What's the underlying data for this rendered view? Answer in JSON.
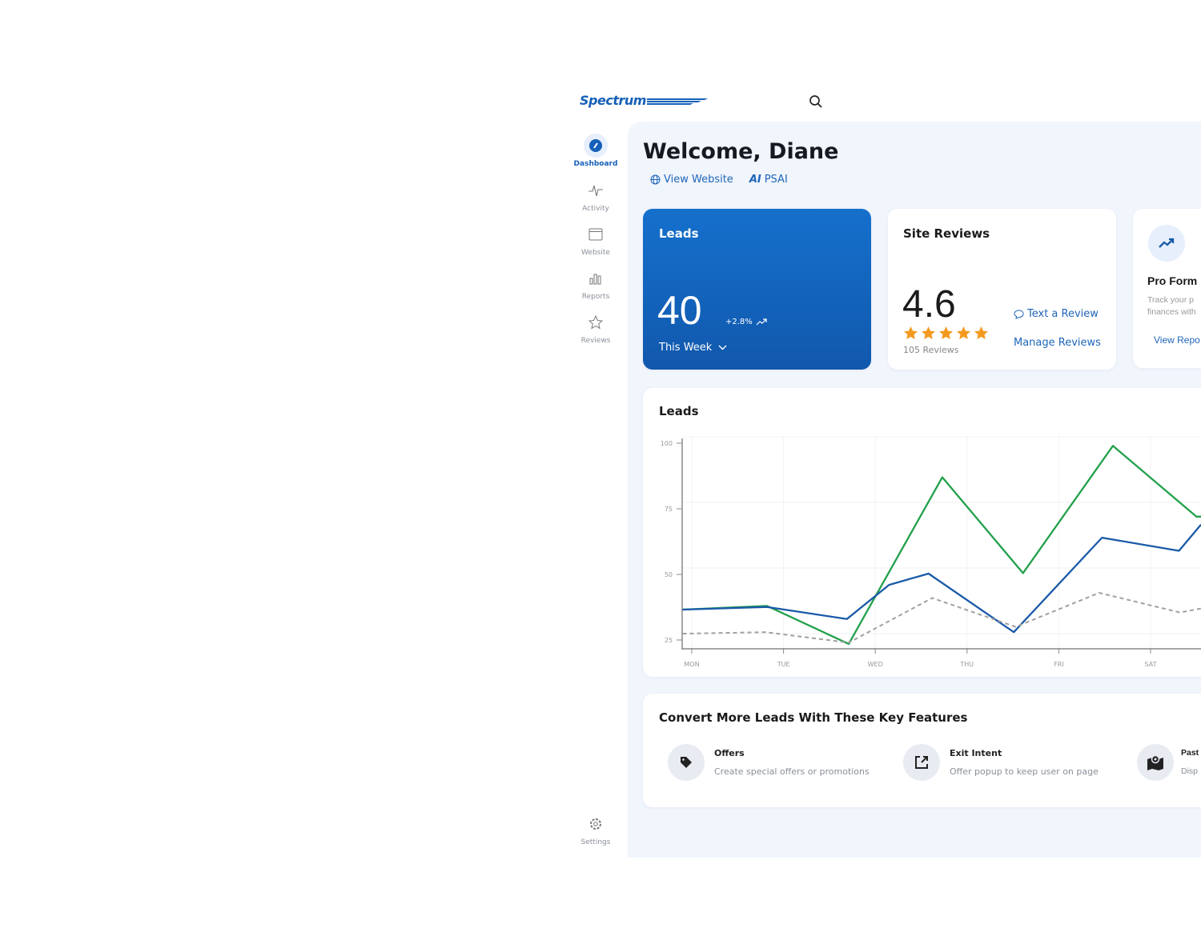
{
  "brand": {
    "logo": "Spectrum",
    "accent": "#1560b8"
  },
  "header": {
    "search_icon": "search-icon"
  },
  "sidebar": {
    "items": [
      {
        "label": "Dashboard",
        "icon": "gauge-icon",
        "active": true
      },
      {
        "label": "Activity",
        "icon": "pulse-icon"
      },
      {
        "label": "Website",
        "icon": "browser-window-icon"
      },
      {
        "label": "Reports",
        "icon": "bar-chart-icon"
      },
      {
        "label": "Reviews",
        "icon": "star-icon"
      }
    ],
    "settings": "Settings"
  },
  "welcome": {
    "title": "Welcome, Diane",
    "view_website": "View Website",
    "ai_badge": "AI",
    "psai": "PSAI"
  },
  "leads_card": {
    "title": "Leads",
    "value": "40",
    "change": "+2.8%",
    "period": "This Week"
  },
  "reviews_card": {
    "title": "Site Reviews",
    "rating": "4.6",
    "stars": 5,
    "count": "105 Reviews",
    "text_review": "Text a Review",
    "manage": "Manage Reviews",
    "star_color": "#f39a1e"
  },
  "pro_card": {
    "title": "Pro Form",
    "desc1": "Track your p",
    "desc2": "finances with",
    "link": "View Repo"
  },
  "chart_data": {
    "type": "line",
    "title": "Leads",
    "categories": [
      "MON",
      "TUE",
      "WED",
      "THU",
      "FRI",
      "SAT"
    ],
    "yticks": [
      100,
      75,
      50,
      25
    ],
    "ylim": [
      22,
      102
    ],
    "grid": true,
    "series": [
      {
        "color": "#22a04b",
        "dashed": false,
        "points": [
          [
            -0.1,
            36.6
          ],
          [
            0.82,
            38
          ],
          [
            1.71,
            23.5
          ],
          [
            2.73,
            87
          ],
          [
            3.61,
            50.5
          ],
          [
            4.59,
            99
          ],
          [
            5.5,
            72
          ],
          [
            5.6,
            72
          ]
        ]
      },
      {
        "color": "#1a5aa8",
        "dashed": false,
        "points": [
          [
            -0.1,
            36.6
          ],
          [
            0.82,
            37.6
          ],
          [
            1.69,
            33
          ],
          [
            2.15,
            46
          ],
          [
            2.58,
            50.3
          ],
          [
            3.51,
            28
          ],
          [
            4.47,
            64
          ],
          [
            5.31,
            59
          ],
          [
            5.55,
            69
          ]
        ]
      },
      {
        "color": "#a0a0a0",
        "dashed": true,
        "points": [
          [
            -0.1,
            27.4
          ],
          [
            0.8,
            28
          ],
          [
            1.71,
            24
          ],
          [
            2.62,
            41
          ],
          [
            3.53,
            30
          ],
          [
            4.44,
            43
          ],
          [
            5.32,
            35.5
          ],
          [
            5.55,
            37
          ]
        ]
      }
    ]
  },
  "features": {
    "title": "Convert More Leads With These Key Features",
    "items": [
      {
        "title": "Offers",
        "desc": "Create special offers or promotions",
        "icon": "tag-icon"
      },
      {
        "title": "Exit Intent",
        "desc": "Offer popup to keep user on page",
        "icon": "external-link-icon"
      },
      {
        "title": "Past",
        "desc": "Disp",
        "icon": "map-pin-icon"
      }
    ]
  }
}
